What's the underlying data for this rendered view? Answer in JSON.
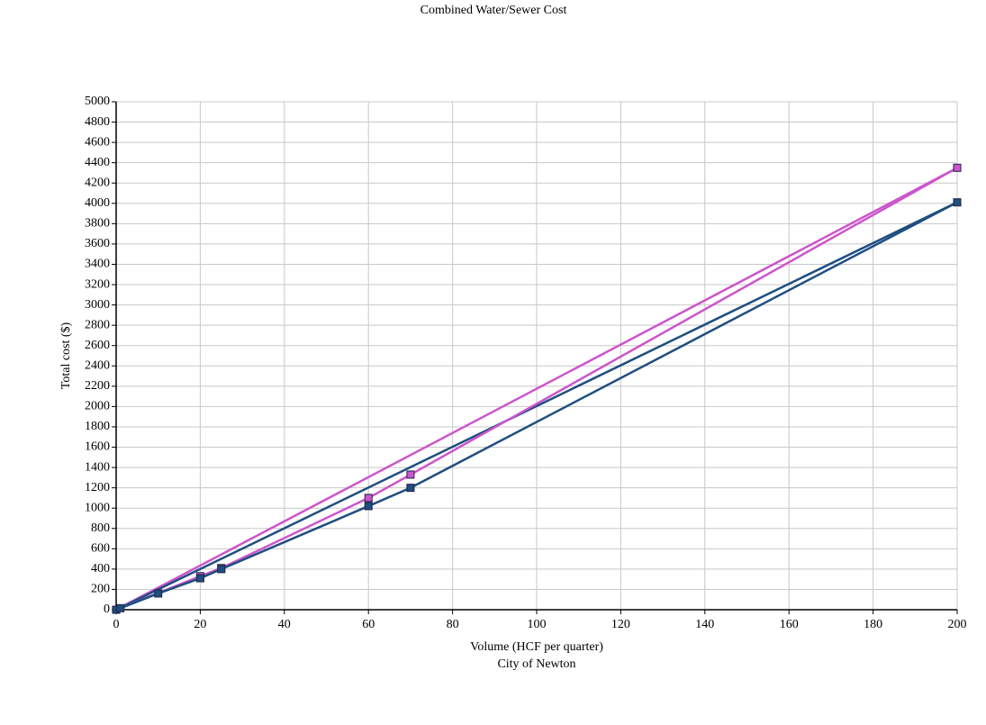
{
  "chart_data": {
    "type": "line",
    "title": "Combined Water/Sewer Cost",
    "xlabel": "Volume (HCF per quarter)",
    "source": "City of Newton",
    "ylabel": "Total cost ($)",
    "xlim": [
      0,
      200
    ],
    "xticks": [
      0,
      20,
      40,
      60,
      80,
      100,
      120,
      140,
      160,
      180,
      200
    ],
    "ylim": [
      0,
      5000
    ],
    "yticks": [
      0,
      200,
      400,
      600,
      800,
      1000,
      1200,
      1400,
      1600,
      1800,
      2000,
      2200,
      2400,
      2600,
      2800,
      3000,
      3200,
      3400,
      3600,
      3800,
      4000,
      4200,
      4400,
      4600,
      4800,
      5000
    ],
    "grid": true,
    "series": [
      {
        "color": "#cc55cc",
        "marker": false,
        "x": [
          0,
          200
        ],
        "values": [
          0,
          4350
        ]
      },
      {
        "color": "#1f4e80",
        "marker": false,
        "x": [
          0,
          200
        ],
        "values": [
          0,
          4010
        ]
      },
      {
        "color": "#cc55cc",
        "marker": true,
        "x": [
          0,
          20,
          25,
          60,
          70,
          200
        ],
        "values": [
          0,
          330,
          410,
          1100,
          1330,
          4350
        ]
      },
      {
        "color": "#1f4e80",
        "marker": true,
        "x": [
          0,
          1,
          10,
          20,
          25,
          60,
          70,
          200
        ],
        "values": [
          0,
          15,
          160,
          310,
          400,
          1020,
          1200,
          4010
        ]
      }
    ]
  }
}
